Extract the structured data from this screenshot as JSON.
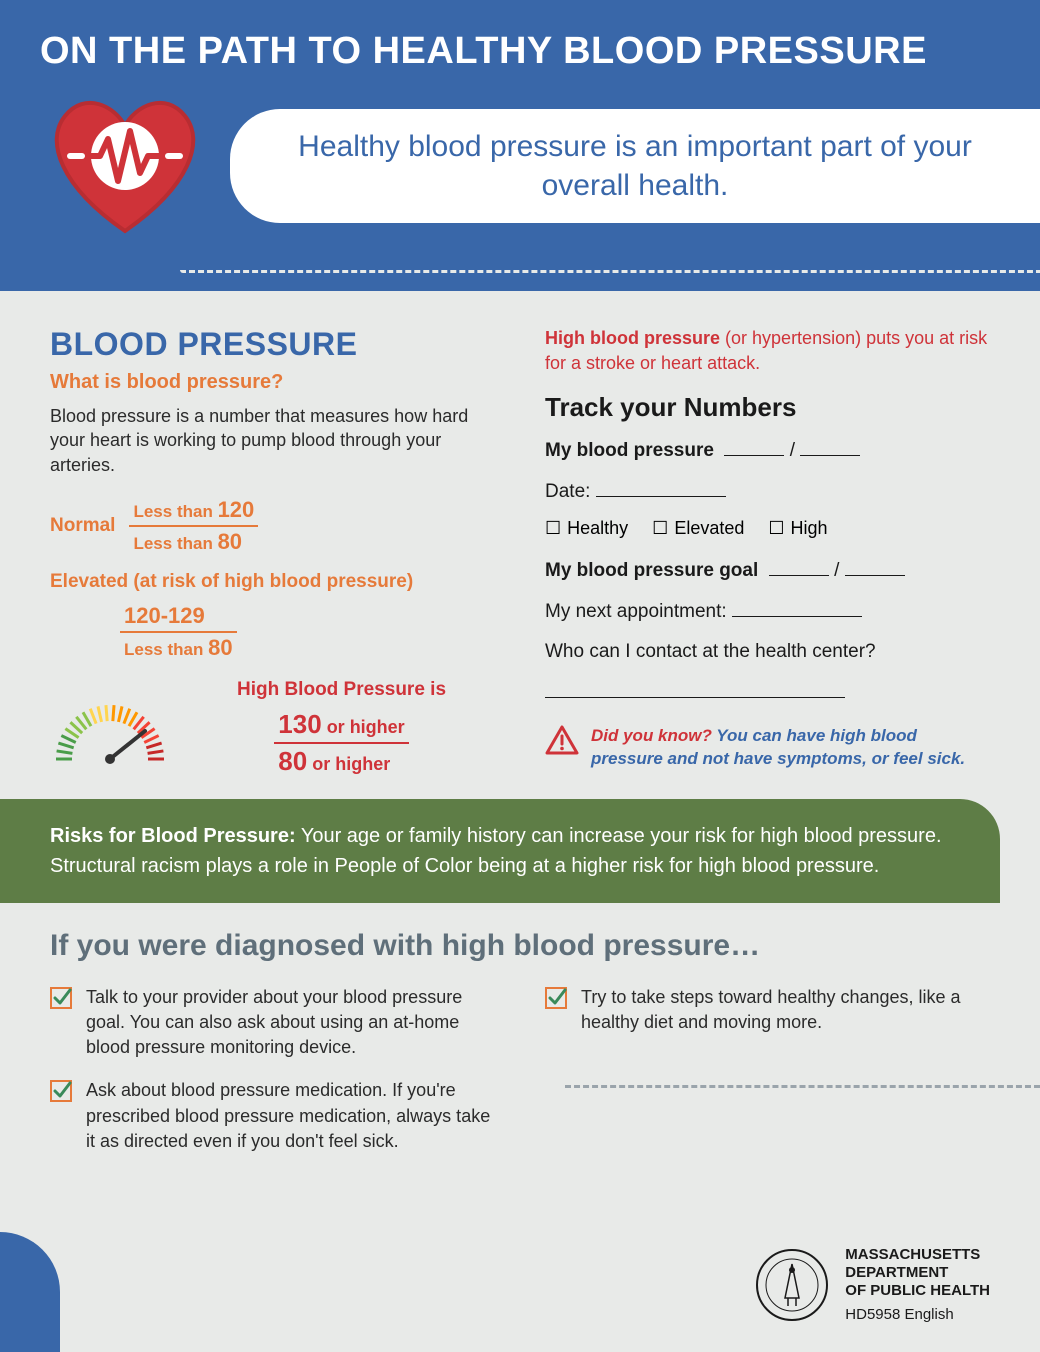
{
  "header": {
    "title": "ON THE PATH TO HEALTHY BLOOD PRESSURE",
    "subtitle": "Healthy blood pressure is an important part of your overall health.",
    "heart_color": "#cf3339",
    "heart_outline": "#b82d32",
    "pulse_color": "#ffffff",
    "bg_color": "#3967a9"
  },
  "bp_section": {
    "heading": "BLOOD PRESSURE",
    "sub_prefix": "What is ",
    "sub_bold": "blood pressure?",
    "body": "Blood pressure is a number that measures how hard your heart is working to pump blood through your arteries.",
    "normal": {
      "label": "Normal",
      "top_text": "Less than ",
      "top_num": "120",
      "bot_text": "Less than ",
      "bot_num": "80",
      "color": "#e67a3a"
    },
    "elevated": {
      "label": "Elevated (at risk of high blood pressure)",
      "top_num": "120-129",
      "bot_text": "Less than ",
      "bot_num": "80",
      "color": "#e67a3a"
    },
    "high": {
      "label": "High Blood Pressure is",
      "top_num": "130",
      "top_suffix": " or higher",
      "bot_num": "80",
      "bot_suffix": " or higher",
      "color": "#cf3339"
    },
    "gauge_colors": [
      "#4a9d4a",
      "#8bc34a",
      "#ffd54f",
      "#ff9800",
      "#f44336",
      "#c62828"
    ]
  },
  "right_col": {
    "intro_bold": "High blood pressure",
    "intro_rest": " (or hypertension) puts you at risk for a stroke or heart attack.",
    "track_heading": "Track your Numbers",
    "my_bp": "My blood pressure",
    "date_label": "Date:",
    "opts": [
      "Healthy",
      "Elevated",
      "High"
    ],
    "goal": "My blood pressure goal",
    "appt": "My next appointment:",
    "contact": "Who can I contact at the health center?",
    "dyk_bold": "Did you know?",
    "dyk_rest": " You can have high blood pressure and not have symptoms, or feel sick.",
    "warn_color": "#cf3339"
  },
  "risk_bar": {
    "bold": "Risks for Blood Pressure:",
    "text": " Your age or family history can increase your risk for high blood pressure. Structural racism plays a role in People of Color being at a higher risk for high blood pressure.",
    "bg": "#5e7d46"
  },
  "diag": {
    "heading": "If you were diagnosed with high blood pressure…",
    "items": [
      "Talk to your provider about your blood pressure goal. You can also ask about using an at-home blood pressure monitoring device.",
      "Ask about blood pressure medication. If you're prescribed blood pressure medication, always take it as directed even if you don't feel sick.",
      "Try to take steps toward healthy changes, like a healthy diet and moving more."
    ],
    "check_box_color": "#e67a3a",
    "check_mark_color": "#3a8a5a"
  },
  "footer": {
    "org1": "MASSACHUSETTS",
    "org2": "DEPARTMENT",
    "org3": "OF PUBLIC HEALTH",
    "code": "HD5958 English"
  }
}
